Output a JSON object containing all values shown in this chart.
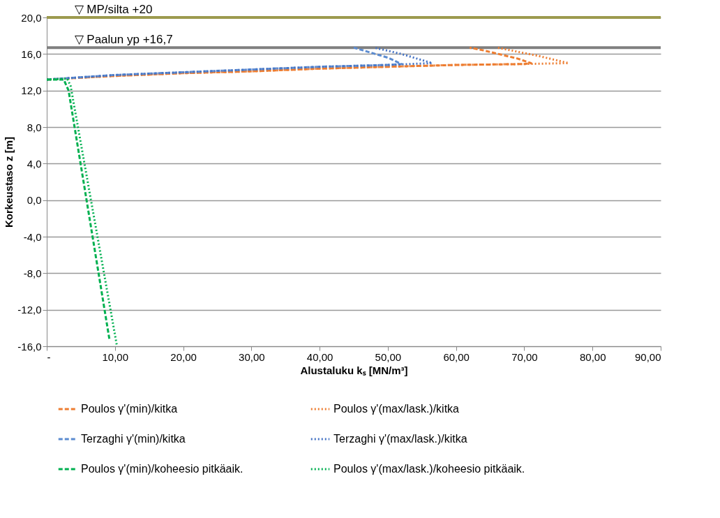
{
  "chart_data": {
    "type": "line",
    "xlabel": "Alustaluku kₛ [MN/m³]",
    "ylabel": "Korkeustaso z [m]",
    "xlim": [
      0,
      90
    ],
    "xticks": [
      {
        "value": 0,
        "label": "-"
      },
      {
        "value": 10,
        "label": "10,00"
      },
      {
        "value": 20,
        "label": "20,00"
      },
      {
        "value": 30,
        "label": "30,00"
      },
      {
        "value": 40,
        "label": "40,00"
      },
      {
        "value": 50,
        "label": "50,00"
      },
      {
        "value": 60,
        "label": "60,00"
      },
      {
        "value": 70,
        "label": "70,00"
      },
      {
        "value": 80,
        "label": "80,00"
      },
      {
        "value": 90,
        "label": "90,00"
      }
    ],
    "ylim": [
      -16,
      20
    ],
    "yticks": [
      {
        "value": -16,
        "label": "-16,0"
      },
      {
        "value": -12,
        "label": "-12,0"
      },
      {
        "value": -8,
        "label": "-8,0"
      },
      {
        "value": -4,
        "label": "-4,0"
      },
      {
        "value": 0,
        "label": "0,0"
      },
      {
        "value": 4,
        "label": "4,0"
      },
      {
        "value": 8,
        "label": "8,0"
      },
      {
        "value": 12,
        "label": "12,0"
      },
      {
        "value": 16,
        "label": "16,0"
      },
      {
        "value": 20,
        "label": "20,0"
      }
    ],
    "grid": "y",
    "legend": "bottom",
    "marker": "none",
    "ref_lines": [
      {
        "axis": "y",
        "value": 20,
        "label": "▽  MP/silta +20",
        "color": "#9c9a4e"
      },
      {
        "axis": "y",
        "value": 16.7,
        "label": "▽  Paalun yp  +16,7",
        "color": "#7f7f7f"
      }
    ],
    "series": [
      {
        "name": "Poulos γ'(min)/kitka",
        "color": "#ed7d31",
        "line_style": "dashed",
        "x": [
          0,
          10,
          20,
          30,
          40,
          50,
          60,
          70,
          71,
          69,
          64,
          62
        ],
        "values": [
          13.2,
          13.6,
          13.9,
          14.1,
          14.4,
          14.6,
          14.8,
          14.9,
          15.0,
          15.5,
          16.4,
          16.7
        ]
      },
      {
        "name": "Poulos γ'(max/lask.)/kitka",
        "color": "#ed7d31",
        "line_style": "dotted",
        "x": [
          0,
          10,
          20,
          30,
          40,
          50,
          60,
          70,
          76.5,
          72,
          66
        ],
        "values": [
          13.2,
          13.6,
          13.9,
          14.1,
          14.4,
          14.6,
          14.8,
          14.9,
          15.0,
          15.8,
          16.7
        ]
      },
      {
        "name": "Terzaghi γ'(min)/kitka",
        "color": "#5b8bd0",
        "line_style": "dashed",
        "x": [
          0,
          10,
          20,
          30,
          40,
          50,
          52,
          50,
          45
        ],
        "values": [
          13.2,
          13.7,
          14.0,
          14.3,
          14.6,
          14.8,
          14.9,
          15.6,
          16.7
        ]
      },
      {
        "name": "Terzaghi γ'(max/lask.)/kitka",
        "color": "#4472c4",
        "line_style": "dotted",
        "x": [
          0,
          10,
          20,
          30,
          40,
          50,
          56.5,
          52,
          48
        ],
        "values": [
          13.2,
          13.7,
          14.0,
          14.3,
          14.6,
          14.8,
          15.0,
          16.0,
          16.7
        ]
      },
      {
        "name": "Poulos γ'(min)/koheesio pitkäaik.",
        "color": "#00b050",
        "line_style": "dashed",
        "x": [
          0,
          2.5,
          3.2,
          9.2
        ],
        "values": [
          13.2,
          13.2,
          12.0,
          -15.3
        ]
      },
      {
        "name": "Poulos γ'(max/lask.)/koheesio pitkäaik.",
        "color": "#00b050",
        "line_style": "dotted",
        "x": [
          0,
          3,
          3.5,
          10.3
        ],
        "values": [
          13.2,
          13.3,
          12.5,
          -16
        ]
      }
    ]
  }
}
